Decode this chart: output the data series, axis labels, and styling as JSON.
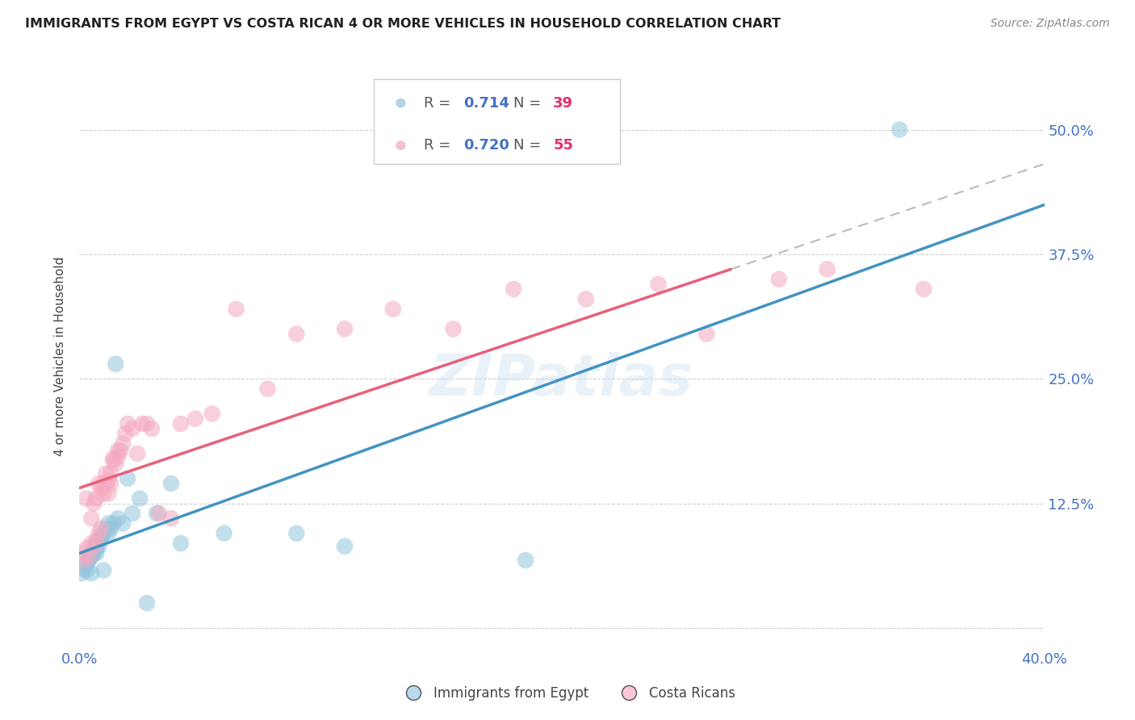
{
  "title": "IMMIGRANTS FROM EGYPT VS COSTA RICAN 4 OR MORE VEHICLES IN HOUSEHOLD CORRELATION CHART",
  "source": "Source: ZipAtlas.com",
  "ylabel": "4 or more Vehicles in Household",
  "ytick_labels": [
    "",
    "12.5%",
    "25.0%",
    "37.5%",
    "50.0%"
  ],
  "ytick_values": [
    0.0,
    0.125,
    0.25,
    0.375,
    0.5
  ],
  "xlim": [
    0.0,
    0.4
  ],
  "ylim": [
    -0.02,
    0.565
  ],
  "legend_r1": "0.714",
  "legend_n1": "39",
  "legend_r2": "0.720",
  "legend_n2": "55",
  "color_egypt": "#92c5de",
  "color_costa": "#f4a9c0",
  "color_egypt_line": "#4393c3",
  "color_costa_line": "#e8607a",
  "watermark": "ZIPatlas",
  "egypt_x": [
    0.001,
    0.002,
    0.003,
    0.003,
    0.004,
    0.004,
    0.005,
    0.005,
    0.006,
    0.006,
    0.007,
    0.007,
    0.007,
    0.008,
    0.008,
    0.009,
    0.009,
    0.01,
    0.01,
    0.011,
    0.012,
    0.012,
    0.013,
    0.014,
    0.015,
    0.016,
    0.018,
    0.02,
    0.022,
    0.025,
    0.028,
    0.032,
    0.038,
    0.042,
    0.06,
    0.09,
    0.11,
    0.185,
    0.34
  ],
  "egypt_y": [
    0.055,
    0.06,
    0.065,
    0.058,
    0.07,
    0.068,
    0.072,
    0.055,
    0.078,
    0.075,
    0.08,
    0.075,
    0.085,
    0.082,
    0.088,
    0.09,
    0.092,
    0.095,
    0.058,
    0.1,
    0.095,
    0.105,
    0.1,
    0.105,
    0.265,
    0.11,
    0.105,
    0.15,
    0.115,
    0.13,
    0.025,
    0.115,
    0.145,
    0.085,
    0.095,
    0.095,
    0.082,
    0.068,
    0.5
  ],
  "costa_x": [
    0.001,
    0.002,
    0.003,
    0.003,
    0.004,
    0.005,
    0.005,
    0.006,
    0.006,
    0.007,
    0.007,
    0.008,
    0.008,
    0.009,
    0.009,
    0.01,
    0.01,
    0.011,
    0.011,
    0.012,
    0.012,
    0.013,
    0.013,
    0.014,
    0.014,
    0.015,
    0.016,
    0.016,
    0.017,
    0.018,
    0.019,
    0.02,
    0.022,
    0.024,
    0.026,
    0.028,
    0.03,
    0.033,
    0.038,
    0.042,
    0.048,
    0.055,
    0.065,
    0.078,
    0.09,
    0.11,
    0.13,
    0.155,
    0.18,
    0.21,
    0.24,
    0.26,
    0.29,
    0.31,
    0.35
  ],
  "costa_y": [
    0.075,
    0.068,
    0.13,
    0.08,
    0.072,
    0.085,
    0.11,
    0.082,
    0.125,
    0.088,
    0.13,
    0.095,
    0.145,
    0.1,
    0.14,
    0.135,
    0.145,
    0.145,
    0.155,
    0.148,
    0.135,
    0.155,
    0.145,
    0.168,
    0.17,
    0.165,
    0.172,
    0.178,
    0.178,
    0.185,
    0.195,
    0.205,
    0.2,
    0.175,
    0.205,
    0.205,
    0.2,
    0.115,
    0.11,
    0.205,
    0.21,
    0.215,
    0.32,
    0.24,
    0.295,
    0.3,
    0.32,
    0.3,
    0.34,
    0.33,
    0.345,
    0.295,
    0.35,
    0.36,
    0.34
  ]
}
